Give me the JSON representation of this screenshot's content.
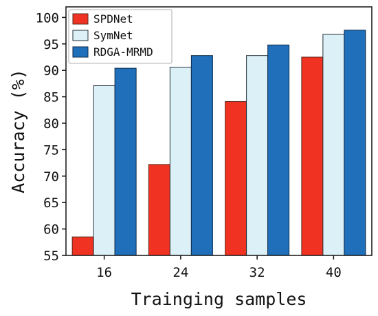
{
  "chart_data": {
    "type": "bar",
    "categories": [
      "16",
      "24",
      "32",
      "40"
    ],
    "series": [
      {
        "name": "SPDNet",
        "values": [
          58.5,
          72.2,
          84.1,
          92.5
        ],
        "color": "#f03223",
        "stroke": "#5a2a1a"
      },
      {
        "name": "SymNet",
        "values": [
          87.1,
          90.6,
          92.8,
          96.8
        ],
        "color": "#dcf0f7",
        "stroke": "#203038"
      },
      {
        "name": "RDGA-MRMD",
        "values": [
          90.4,
          92.8,
          94.8,
          97.6
        ],
        "color": "#1f6fba",
        "stroke": "#0d2a48"
      }
    ],
    "xlabel": "Trainging samples",
    "ylabel": "Accuracy (%)",
    "ylim": [
      55,
      102
    ],
    "yticks": [
      55,
      60,
      65,
      70,
      75,
      80,
      85,
      90,
      95,
      100
    ],
    "legend_position": "top-left",
    "grid": false
  }
}
